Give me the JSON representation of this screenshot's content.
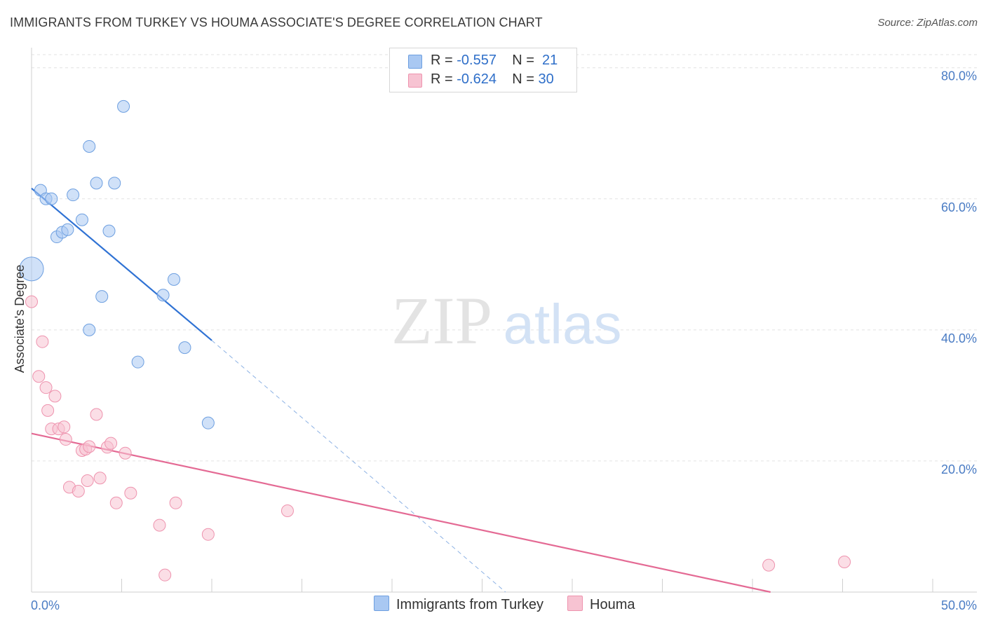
{
  "title": "IMMIGRANTS FROM TURKEY VS HOUMA ASSOCIATE'S DEGREE CORRELATION CHART",
  "source": "Source: ZipAtlas.com",
  "watermark": {
    "zip": "ZIP",
    "atlas": "atlas"
  },
  "legend": {
    "r_label": "R =",
    "n_label": "N =",
    "rows": [
      {
        "r": "-0.557",
        "n": "21",
        "color": "#a9c8f2",
        "border": "#6d9fe0"
      },
      {
        "r": "-0.624",
        "n": "30",
        "color": "#f7c3d2",
        "border": "#ee93ae"
      }
    ]
  },
  "bottom_legend": [
    {
      "label": "Immigrants from Turkey",
      "color": "#a9c8f2",
      "border": "#6d9fe0"
    },
    {
      "label": "Houma",
      "color": "#f7c3d2",
      "border": "#ee93ae"
    }
  ],
  "chart_data": {
    "type": "scatter",
    "xlabel": "",
    "ylabel": "Associate's Degree",
    "xlim": [
      0,
      50
    ],
    "ylim": [
      0,
      82
    ],
    "x_tick_labels": {
      "left": "0.0%",
      "right": "50.0%"
    },
    "y_ticks": [
      {
        "value": 20,
        "label": "20.0%"
      },
      {
        "value": 40,
        "label": "40.0%"
      },
      {
        "value": 60,
        "label": "60.0%"
      },
      {
        "value": 80,
        "label": "80.0%"
      }
    ],
    "grid": true,
    "series": [
      {
        "name": "Immigrants from Turkey",
        "color": "#6d9fe0",
        "fill": "#a9c8f2",
        "points": [
          [
            0.0,
            49.3,
            14
          ],
          [
            0.5,
            61.3,
            8
          ],
          [
            0.8,
            60.0,
            8
          ],
          [
            1.1,
            60.0,
            8
          ],
          [
            1.4,
            54.2,
            8
          ],
          [
            1.7,
            54.9,
            8
          ],
          [
            2.0,
            55.3,
            8
          ],
          [
            2.3,
            60.6,
            8
          ],
          [
            2.8,
            56.8,
            8
          ],
          [
            3.2,
            40.0,
            8
          ],
          [
            3.2,
            68.0,
            8
          ],
          [
            3.6,
            62.4,
            8
          ],
          [
            3.9,
            45.1,
            8
          ],
          [
            4.3,
            55.1,
            8
          ],
          [
            4.6,
            62.4,
            8
          ],
          [
            5.1,
            74.1,
            8
          ],
          [
            5.9,
            35.1,
            8
          ],
          [
            7.3,
            45.3,
            8
          ],
          [
            7.9,
            47.7,
            8
          ],
          [
            8.5,
            37.3,
            8
          ],
          [
            9.8,
            25.8,
            8
          ]
        ],
        "trend": {
          "x0": 0.0,
          "y0": 61.6,
          "x1": 10.0,
          "y1": 38.4,
          "dash_to_x": 26.3,
          "dash_to_y": 0.0
        }
      },
      {
        "name": "Houma",
        "color": "#ee93ae",
        "fill": "#f7c3d2",
        "points": [
          [
            0.0,
            44.3,
            8
          ],
          [
            0.4,
            32.9,
            8
          ],
          [
            0.6,
            38.2,
            8
          ],
          [
            0.8,
            31.2,
            8
          ],
          [
            0.9,
            27.7,
            8
          ],
          [
            1.1,
            24.9,
            8
          ],
          [
            1.3,
            29.9,
            8
          ],
          [
            1.5,
            24.9,
            8
          ],
          [
            1.8,
            25.2,
            8
          ],
          [
            1.9,
            23.3,
            8
          ],
          [
            2.1,
            16.0,
            8
          ],
          [
            2.6,
            15.4,
            8
          ],
          [
            2.8,
            21.6,
            8
          ],
          [
            3.0,
            21.8,
            8
          ],
          [
            3.1,
            17.0,
            8
          ],
          [
            3.2,
            22.2,
            8
          ],
          [
            3.6,
            27.1,
            8
          ],
          [
            3.8,
            17.4,
            8
          ],
          [
            4.2,
            22.1,
            8
          ],
          [
            4.4,
            22.7,
            8
          ],
          [
            4.7,
            13.6,
            8
          ],
          [
            5.2,
            21.2,
            8
          ],
          [
            5.5,
            15.1,
            8
          ],
          [
            7.1,
            10.2,
            8
          ],
          [
            7.4,
            2.6,
            8
          ],
          [
            8.0,
            13.6,
            8
          ],
          [
            9.8,
            8.8,
            8
          ],
          [
            14.2,
            12.4,
            8
          ],
          [
            40.9,
            4.1,
            8
          ],
          [
            45.1,
            4.6,
            8
          ]
        ],
        "trend": {
          "x0": 0.0,
          "y0": 24.2,
          "x1": 41.0,
          "y1": 0.0
        }
      }
    ]
  }
}
